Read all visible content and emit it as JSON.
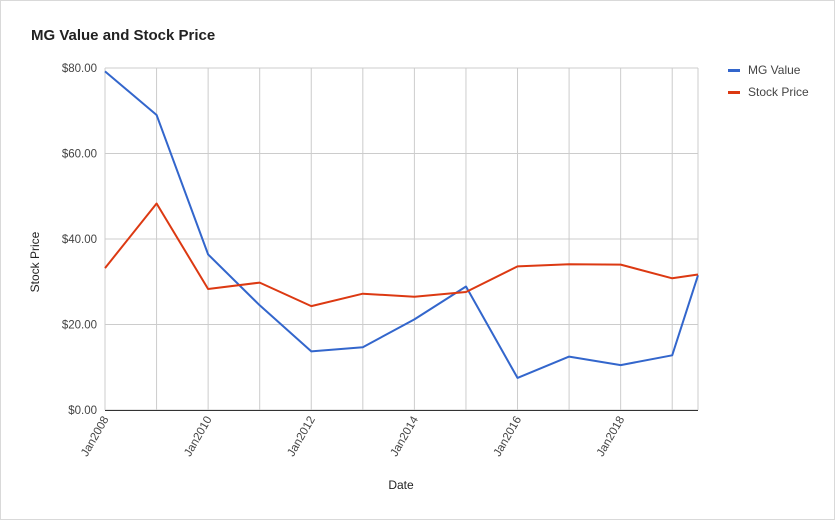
{
  "chart_data": {
    "type": "line",
    "title": "MG Value and Stock Price",
    "xlabel": "Date",
    "ylabel": "Stock Price",
    "x": [
      "2008-01",
      "2009-01",
      "2010-01",
      "2011-01",
      "2012-01",
      "2013-01",
      "2014-01",
      "2015-01",
      "2016-01",
      "2017-01",
      "2018-01",
      "2019-01",
      "2019-07"
    ],
    "x_ticks": [
      "Jan2008",
      "Jan2010",
      "Jan2012",
      "Jan2014",
      "Jan2016",
      "Jan2018"
    ],
    "y_ticks": [
      "$0.00",
      "$20.00",
      "$40.00",
      "$60.00",
      "$80.00"
    ],
    "ylim": [
      0,
      80
    ],
    "grid": true,
    "legend": "right",
    "series": [
      {
        "name": "MG Value",
        "color": "#3366cc",
        "values": [
          79.2,
          69.0,
          36.4,
          24.5,
          13.7,
          14.7,
          21.2,
          28.9,
          7.5,
          12.5,
          10.5,
          12.8,
          31.5
        ]
      },
      {
        "name": "Stock Price",
        "color": "#dc3912",
        "values": [
          33.2,
          48.3,
          28.3,
          29.8,
          24.3,
          27.2,
          26.5,
          27.6,
          33.6,
          34.1,
          34.0,
          30.8,
          31.7
        ]
      }
    ]
  }
}
